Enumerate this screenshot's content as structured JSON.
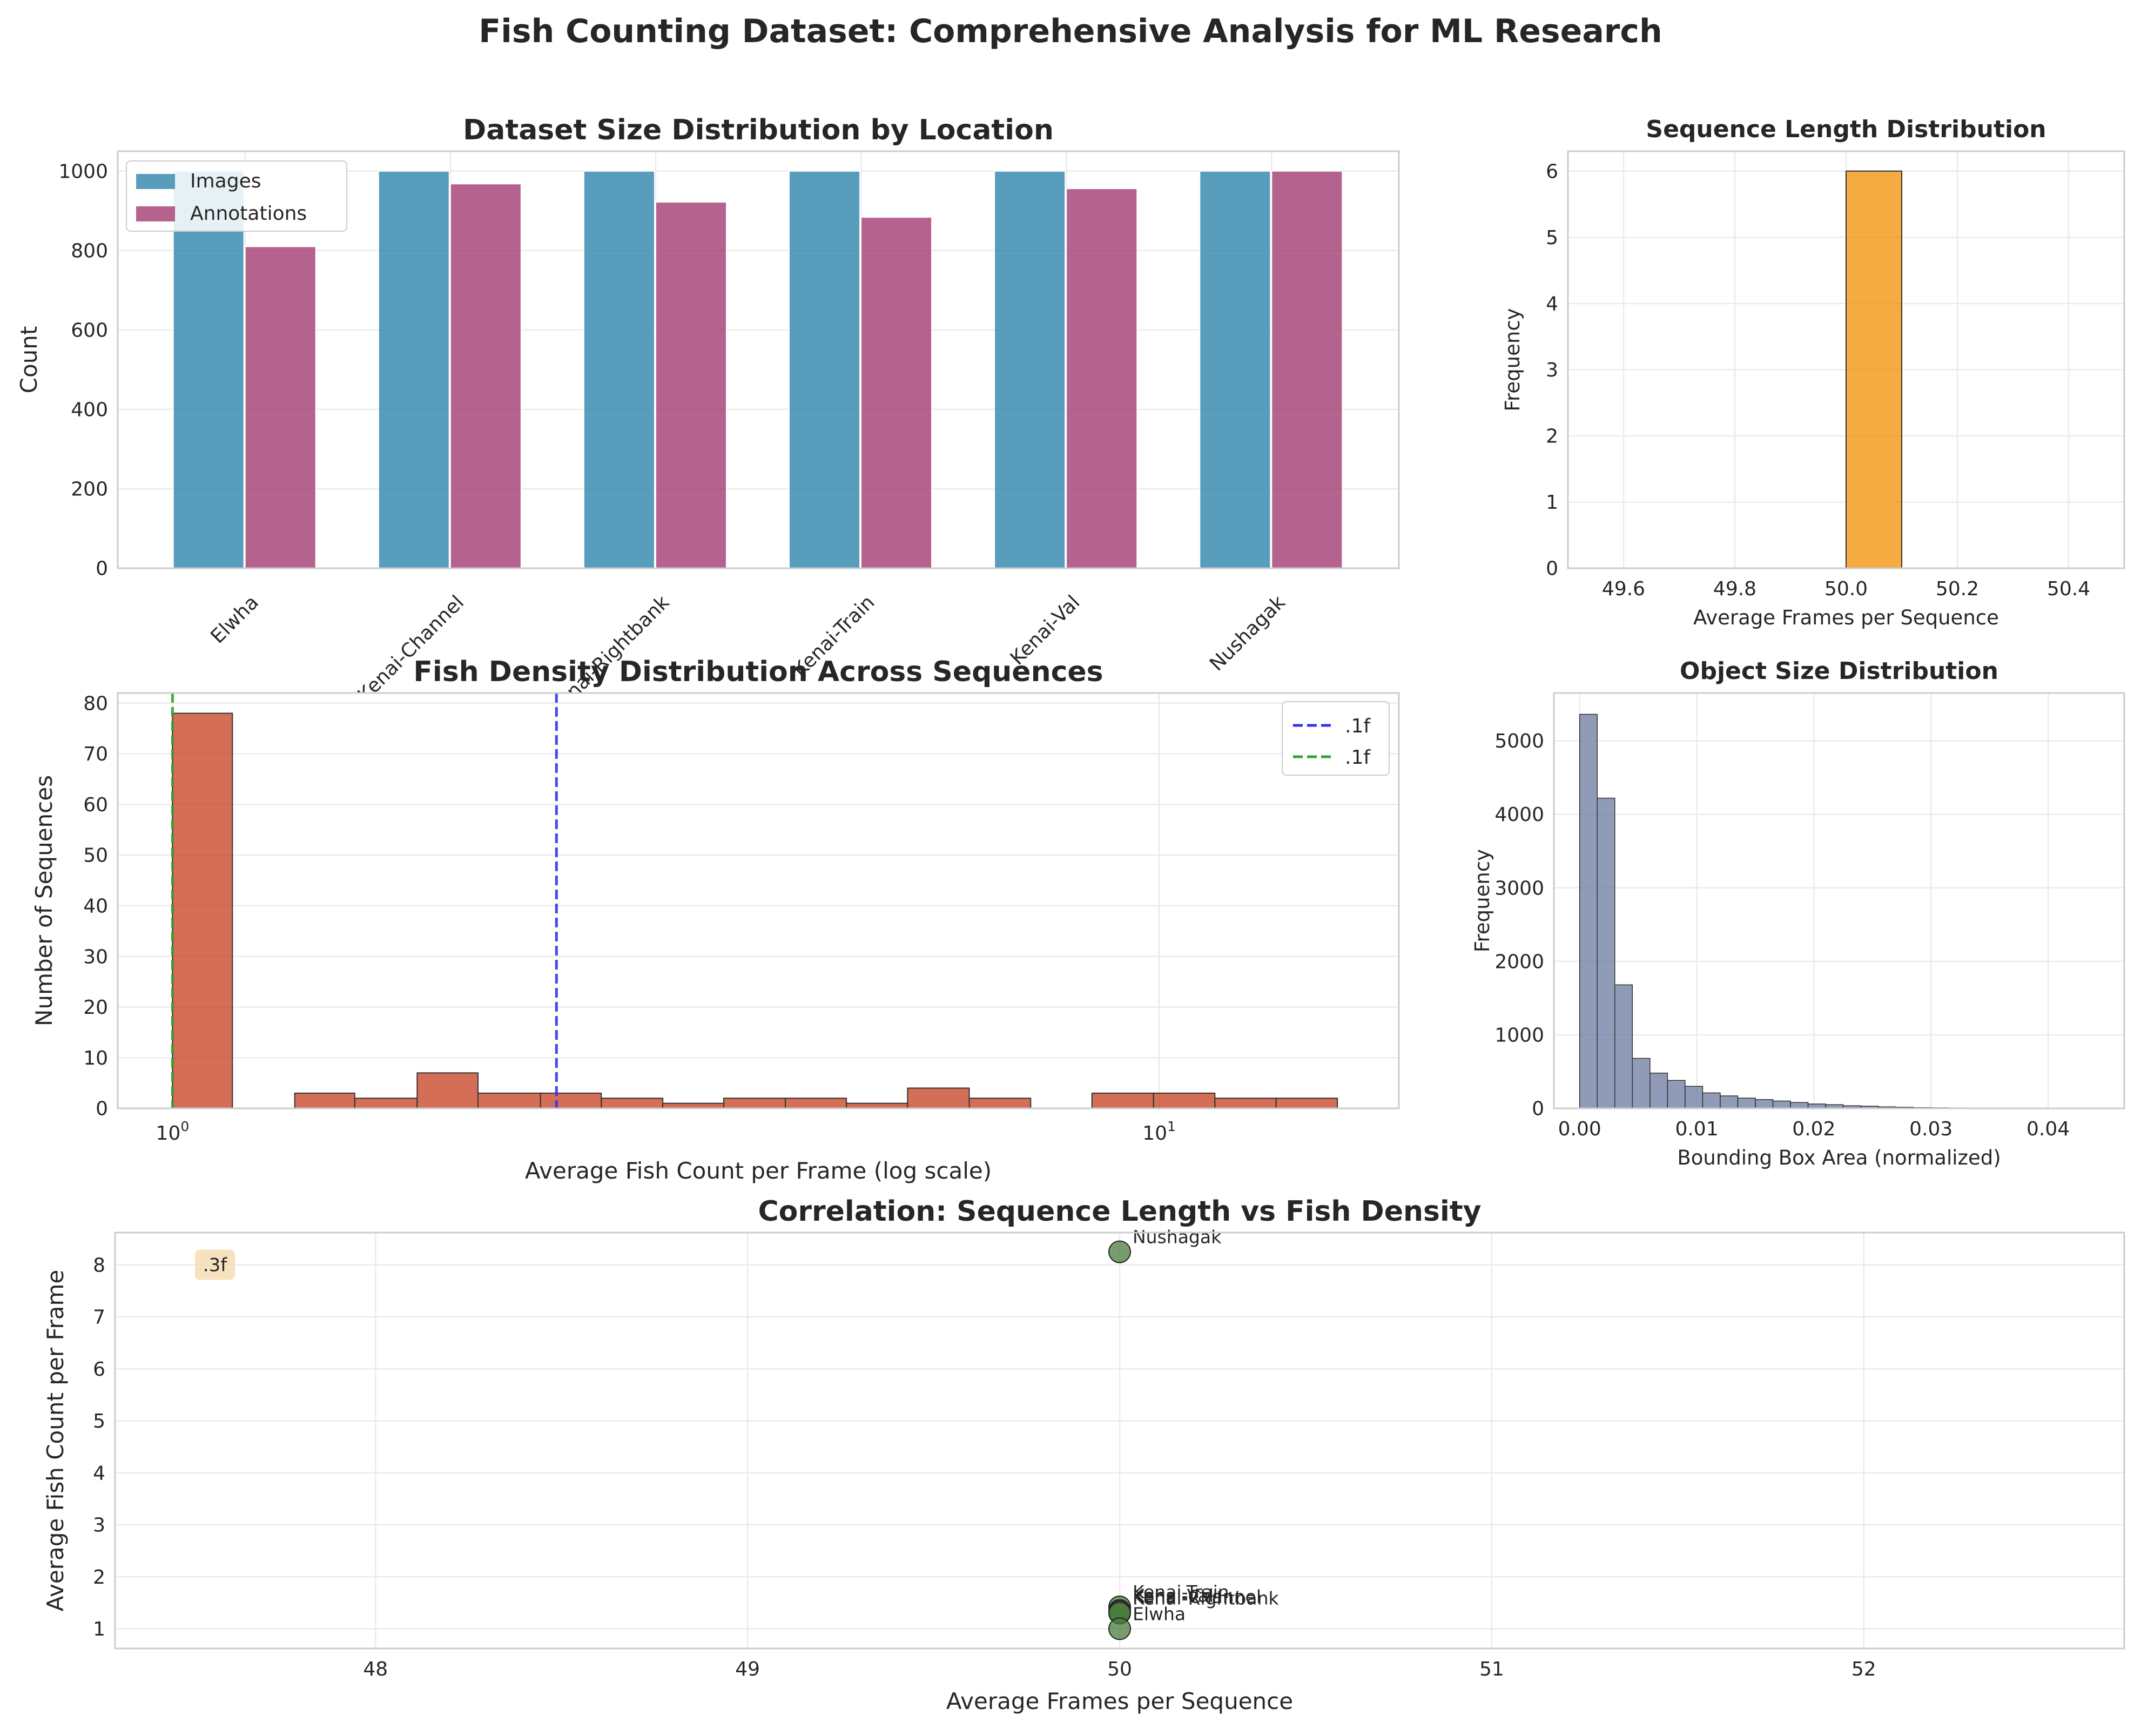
{
  "suptitle": "Fish Counting Dataset: Comprehensive Analysis for ML Research",
  "chart_data": [
    {
      "id": "size",
      "type": "bar",
      "title": "Dataset Size Distribution by Location",
      "xlabel": "",
      "ylabel": "Count",
      "categories": [
        "Elwha",
        "Kenai-Channel",
        "Kenai-Rightbank",
        "Kenai-Train",
        "Kenai-Val",
        "Nushagak"
      ],
      "series": [
        {
          "name": "Images",
          "color": "#2e86ab",
          "values": [
            1000,
            1000,
            1000,
            1000,
            1000,
            1000
          ]
        },
        {
          "name": "Annotations",
          "color": "#a23b72",
          "values": [
            810,
            968,
            922,
            884,
            956,
            1000
          ]
        }
      ],
      "ylim": [
        0,
        1050
      ],
      "yticks": [
        0,
        200,
        400,
        600,
        800,
        1000
      ],
      "legend": "top-left",
      "grid": true
    },
    {
      "id": "seqlen",
      "type": "bar",
      "title": "Sequence Length Distribution",
      "xlabel": "Average Frames per Sequence",
      "ylabel": "Frequency",
      "color": "#f18f01",
      "bins": [
        {
          "x0": 50.0,
          "x1": 50.1,
          "count": 6
        }
      ],
      "xlim": [
        49.5,
        50.5
      ],
      "ylim": [
        0,
        6.3
      ],
      "xticks": [
        "49.6",
        "49.8",
        "50.0",
        "50.2",
        "50.4"
      ],
      "yticks": [
        0,
        1,
        2,
        3,
        4,
        5,
        6
      ],
      "grid": true
    },
    {
      "id": "density",
      "type": "bar",
      "title": "Fish Density Distribution Across Sequences",
      "xlabel": "Average Fish Count per Frame (log scale)",
      "ylabel": "Number of Sequences",
      "xscale": "log",
      "color": "#c73e1d",
      "bins": [
        {
          "x0": 1.0,
          "x1": 1.15,
          "count": 78
        },
        {
          "x0": 1.33,
          "x1": 1.53,
          "count": 3
        },
        {
          "x0": 1.53,
          "x1": 1.77,
          "count": 2
        },
        {
          "x0": 1.77,
          "x1": 2.04,
          "count": 7
        },
        {
          "x0": 2.04,
          "x1": 2.36,
          "count": 3
        },
        {
          "x0": 2.36,
          "x1": 2.72,
          "count": 3
        },
        {
          "x0": 2.72,
          "x1": 3.14,
          "count": 2
        },
        {
          "x0": 3.14,
          "x1": 3.62,
          "count": 1
        },
        {
          "x0": 3.62,
          "x1": 4.18,
          "count": 2
        },
        {
          "x0": 4.18,
          "x1": 4.82,
          "count": 2
        },
        {
          "x0": 4.82,
          "x1": 5.56,
          "count": 1
        },
        {
          "x0": 5.56,
          "x1": 6.42,
          "count": 4
        },
        {
          "x0": 6.42,
          "x1": 7.41,
          "count": 2
        },
        {
          "x0": 8.55,
          "x1": 9.87,
          "count": 3
        },
        {
          "x0": 9.87,
          "x1": 11.39,
          "count": 3
        },
        {
          "x0": 11.39,
          "x1": 13.14,
          "count": 2
        },
        {
          "x0": 13.14,
          "x1": 15.16,
          "count": 2
        }
      ],
      "vlines": [
        {
          "x": 2.45,
          "color": "#3333ee",
          "label": ".1f"
        },
        {
          "x": 1.0,
          "color": "#33a033",
          "label": ".1f"
        }
      ],
      "xlim": [
        0.88,
        17.5
      ],
      "ylim": [
        0,
        82
      ],
      "yticks": [
        0,
        10,
        20,
        30,
        40,
        50,
        60,
        70,
        80
      ],
      "xticks": [
        {
          "value": 1,
          "base": "10",
          "exp": "0"
        },
        {
          "value": 10,
          "base": "10",
          "exp": "1"
        }
      ],
      "legend": "top-right",
      "grid": true
    },
    {
      "id": "objsize",
      "type": "bar",
      "title": "Object Size Distribution",
      "xlabel": "Bounding Box Area (normalized)",
      "ylabel": "Frequency",
      "color": "#6b7a9f",
      "bin_start": 0.0,
      "bin_width": 0.0015,
      "counts": [
        5360,
        4220,
        1680,
        680,
        480,
        380,
        300,
        210,
        170,
        140,
        120,
        100,
        80,
        60,
        50,
        35,
        30,
        20,
        15,
        10,
        8,
        6,
        5,
        3,
        2
      ],
      "xlim": [
        -0.0022,
        0.0465
      ],
      "ylim": [
        0,
        5650
      ],
      "xticks": [
        "0.00",
        "0.01",
        "0.02",
        "0.03",
        "0.04"
      ],
      "yticks": [
        0,
        1000,
        2000,
        3000,
        4000,
        5000
      ],
      "grid": true
    },
    {
      "id": "corr",
      "type": "scatter",
      "title": "Correlation: Sequence Length vs Fish Density",
      "xlabel": "Average Frames per Sequence",
      "ylabel": "Average Fish Count per Frame",
      "color": "#4a7c3f",
      "points": [
        {
          "label": "Nushagak",
          "x": 50,
          "y": 8.25
        },
        {
          "label": "Kenai-Train",
          "x": 50,
          "y": 1.42
        },
        {
          "label": "Kenai-Val",
          "x": 50,
          "y": 1.35
        },
        {
          "label": "Kenai-Channel",
          "x": 50,
          "y": 1.33
        },
        {
          "label": "Kenai-Rightbank",
          "x": 50,
          "y": 1.3
        },
        {
          "label": "Elwha",
          "x": 50,
          "y": 1.0
        }
      ],
      "annotation": ".3f",
      "xlim": [
        47.3,
        52.7
      ],
      "ylim": [
        0.62,
        8.62
      ],
      "xticks": [
        48,
        49,
        50,
        51,
        52
      ],
      "yticks": [
        1,
        2,
        3,
        4,
        5,
        6,
        7,
        8
      ],
      "grid": true
    }
  ]
}
